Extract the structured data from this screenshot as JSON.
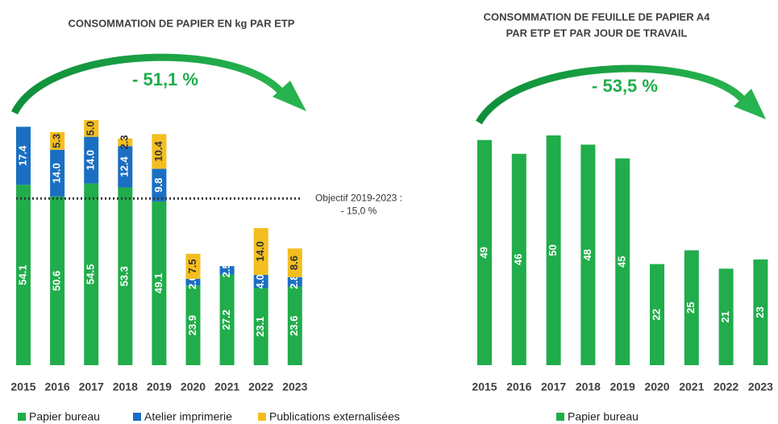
{
  "chart_data": [
    {
      "type": "stacked_bar",
      "title": [
        "CONSOMMATION DE PAPIER EN kg PAR ETP"
      ],
      "categories": [
        "2015",
        "2016",
        "2017",
        "2018",
        "2019",
        "2020",
        "2021",
        "2022",
        "2023"
      ],
      "series": [
        {
          "name": "Papier bureau",
          "color": "#21ad4b",
          "values": [
            54.1,
            50.6,
            54.5,
            53.3,
            49.1,
            23.9,
            27.2,
            23.1,
            23.6
          ],
          "value_labels": [
            "54.1",
            "50.6",
            "54.5",
            "53.3",
            "49.1",
            "23.9",
            "27.2",
            "23.1",
            "23.6"
          ]
        },
        {
          "name": "Atelier imprimerie",
          "color": "#1b6fc2",
          "values": [
            17.4,
            14.0,
            14.0,
            12.4,
            9.8,
            2.0,
            2.5,
            4.0,
            2.8
          ],
          "value_labels": [
            "17.4",
            "14.0",
            "14.0",
            "12.4",
            "9.8",
            "2.0",
            "2.5",
            "4.0",
            "2.8"
          ]
        },
        {
          "name": "Publications externalisées",
          "color": "#f4be1f",
          "values": [
            null,
            5.3,
            5.0,
            2.3,
            10.4,
            7.5,
            null,
            14.0,
            8.6
          ],
          "value_labels": [
            null,
            "5.3",
            "5.0",
            "2.3",
            "10.4",
            "7.5",
            null,
            "14.0",
            "8.6"
          ]
        }
      ],
      "annotation": "- 51,1 %",
      "objective": {
        "value": 50,
        "label": [
          "Objectif 2019-2023 :",
          "- 15,0 %"
        ]
      }
    },
    {
      "type": "bar",
      "title": [
        "CONSOMMATION DE FEUILLE DE PAPIER A4",
        "PAR ETP ET PAR JOUR DE TRAVAIL"
      ],
      "categories": [
        "2015",
        "2016",
        "2017",
        "2018",
        "2019",
        "2020",
        "2021",
        "2022",
        "2023"
      ],
      "series": [
        {
          "name": "Papier bureau",
          "color": "#21ad4b",
          "values": [
            49,
            46,
            50,
            48,
            45,
            22,
            25,
            21,
            23
          ]
        }
      ],
      "annotation": "- 53,5 %"
    }
  ]
}
